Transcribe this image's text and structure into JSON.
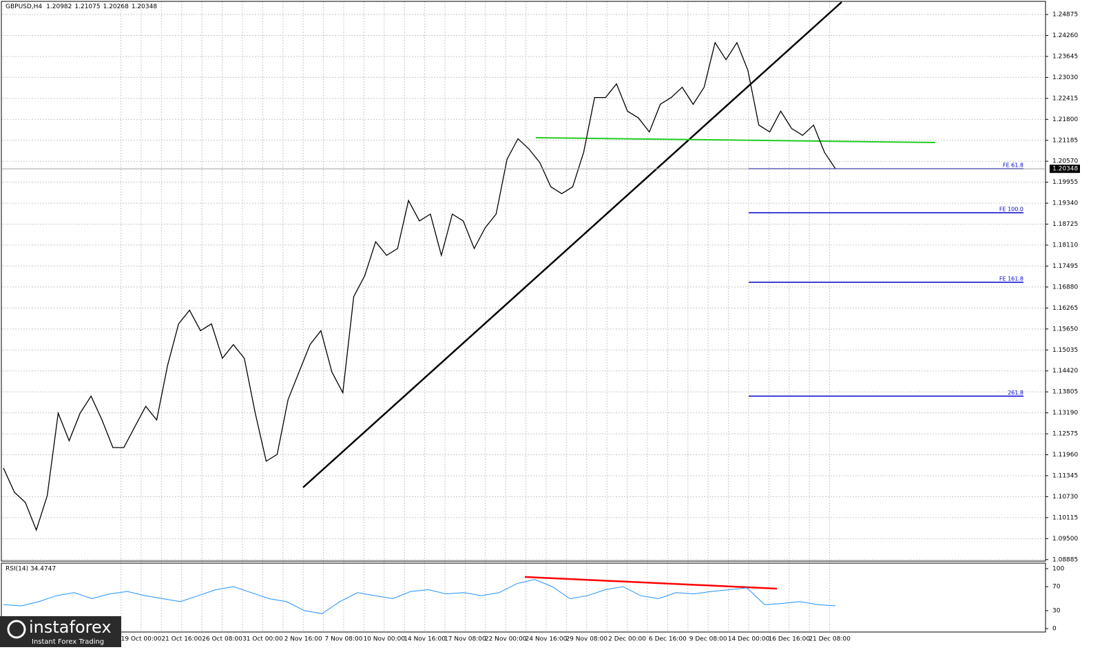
{
  "symbol": "GBPUSD,H4",
  "ohlc": [
    1.20982,
    1.21075,
    1.20268,
    1.20348
  ],
  "time_axis": [
    "19 Oct 00:00",
    "21 Oct 16:00",
    "26 Oct 08:00",
    "31 Oct 00:00",
    "2 Nov 16:00",
    "7 Nov 08:00",
    "10 Nov 00:00",
    "14 Nov 16:00",
    "17 Nov 08:00",
    "22 Nov 00:00",
    "24 Nov 16:00",
    "29 Nov 08:00",
    "2 Dec 00:00",
    "6 Dec 16:00",
    "9 Dec 08:00",
    "14 Dec 00:00",
    "16 Dec 16:00",
    "21 Dec 08:00"
  ],
  "logo": {
    "name": "instaforex",
    "tagline": "Instant Forex Trading"
  },
  "chart_data": [
    {
      "type": "line",
      "name": "price",
      "color": "#000000",
      "values": [
        1.1157,
        1.1086,
        1.1056,
        1.0975,
        1.1076,
        1.1318,
        1.1237,
        1.1318,
        1.1368,
        1.1298,
        1.1217,
        1.1217,
        1.1278,
        1.1338,
        1.1298,
        1.1459,
        1.158,
        1.162,
        1.156,
        1.158,
        1.1479,
        1.1519,
        1.1479,
        1.1318,
        1.1177,
        1.1197,
        1.1358,
        1.1439,
        1.1519,
        1.156,
        1.1439,
        1.1378,
        1.166,
        1.1721,
        1.1821,
        1.1781,
        1.1801,
        1.1942,
        1.1882,
        1.1902,
        1.1781,
        1.1902,
        1.1882,
        1.1801,
        1.1862,
        1.1902,
        1.2063,
        1.2123,
        1.2093,
        1.2053,
        1.1982,
        1.1962,
        1.1982,
        1.2083,
        1.2244,
        1.2244,
        1.2284,
        1.2204,
        1.2184,
        1.2143,
        1.2224,
        1.2244,
        1.2274,
        1.2224,
        1.2274,
        1.2405,
        1.2355,
        1.2405,
        1.2324,
        1.2163,
        1.2143,
        1.2204,
        1.2153,
        1.2133,
        1.2163,
        1.2083,
        1.2035
      ],
      "last_price": 1.20348,
      "levels": [
        {
          "label": "FE 61.8",
          "price": 1.2035
        },
        {
          "label": "FE 100.0",
          "price": 1.1906
        },
        {
          "label": "FE 161.8",
          "price": 1.1702
        },
        {
          "label": "261.8",
          "price": 1.1368
        }
      ],
      "ylim": [
        1.0884,
        1.2526
      ],
      "yticks": [
        {
          "value": 1.24875,
          "label": "1.24875"
        },
        {
          "value": 1.2426,
          "label": "1.24260"
        },
        {
          "value": 1.23645,
          "label": "1.23645"
        },
        {
          "value": 1.2303,
          "label": "1.23030"
        },
        {
          "value": 1.22415,
          "label": "1.22415"
        },
        {
          "value": 1.218,
          "label": "1.21800"
        },
        {
          "value": 1.21185,
          "label": "1.21185"
        },
        {
          "value": 1.2057,
          "label": "1.20570"
        },
        {
          "value": 1.19955,
          "label": "1.19955"
        },
        {
          "value": 1.1934,
          "label": "1.19340"
        },
        {
          "value": 1.18725,
          "label": "1.18725"
        },
        {
          "value": 1.1811,
          "label": "1.18110"
        },
        {
          "value": 1.17495,
          "label": "1.17495"
        },
        {
          "value": 1.1688,
          "label": "1.16880"
        },
        {
          "value": 1.16265,
          "label": "1.16265"
        },
        {
          "value": 1.1565,
          "label": "1.15650"
        },
        {
          "value": 1.15035,
          "label": "1.15035"
        },
        {
          "value": 1.1442,
          "label": "1.14420"
        },
        {
          "value": 1.13805,
          "label": "1.13805"
        },
        {
          "value": 1.1319,
          "label": "1.13190"
        },
        {
          "value": 1.12575,
          "label": "1.12575"
        },
        {
          "value": 1.1196,
          "label": "1.11960"
        },
        {
          "value": 1.11345,
          "label": "1.11345"
        },
        {
          "value": 1.1073,
          "label": "1.10730"
        },
        {
          "value": 1.10115,
          "label": "1.10115"
        },
        {
          "value": 1.095,
          "label": "1.09500"
        },
        {
          "value": 1.08885,
          "label": "1.08885"
        }
      ]
    },
    {
      "type": "line",
      "title": "RSI(14) 34.4747",
      "color": "#1e90ff",
      "values": [
        40,
        38,
        45,
        55,
        60,
        50,
        58,
        62,
        55,
        50,
        45,
        55,
        65,
        70,
        60,
        50,
        45,
        30,
        25,
        45,
        60,
        55,
        50,
        62,
        65,
        58,
        60,
        55,
        60,
        75,
        82,
        70,
        50,
        55,
        65,
        70,
        55,
        50,
        60,
        58,
        62,
        65,
        68,
        40,
        42,
        45,
        40,
        38
      ],
      "ylim": [
        -5.7,
        109.2
      ],
      "yticks": [
        100,
        70,
        30,
        0
      ]
    }
  ]
}
